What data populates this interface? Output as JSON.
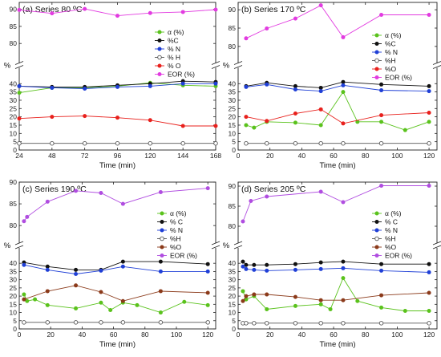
{
  "chart_data": [
    {
      "type": "line",
      "title": "(a) Series 80 ºC",
      "xlabel": "Time (min)",
      "ylabel": "%",
      "xlim": [
        24,
        168
      ],
      "xticks": [
        24,
        48,
        72,
        96,
        120,
        144,
        168
      ],
      "upper": {
        "ylim": [
          77,
          92
        ],
        "yticks": [
          80,
          85,
          90
        ]
      },
      "lower": {
        "ylim": [
          0,
          44
        ],
        "yticks": [
          0,
          5,
          10,
          15,
          20,
          25,
          30,
          35,
          40
        ]
      },
      "legend_position": "right",
      "series": [
        {
          "name": "α (%)",
          "color": "#5ac21c",
          "marker": "filled",
          "panel": "lower",
          "x": [
            24,
            48,
            72,
            96,
            120,
            144,
            168
          ],
          "y": [
            34.5,
            37.5,
            37.5,
            38.5,
            40.5,
            39,
            38.5
          ]
        },
        {
          "name": "%C",
          "color": "#111111",
          "marker": "filled",
          "panel": "lower",
          "x": [
            24,
            48,
            72,
            96,
            120,
            144,
            168
          ],
          "y": [
            38.5,
            38,
            38,
            39,
            40,
            41.5,
            41
          ]
        },
        {
          "name": "% N",
          "color": "#1f3fd6",
          "marker": "filled",
          "panel": "lower",
          "x": [
            24,
            48,
            72,
            96,
            120,
            144,
            168
          ],
          "y": [
            38.5,
            37.5,
            37,
            38,
            38.5,
            40,
            40
          ]
        },
        {
          "name": "% H",
          "color": "#555555",
          "marker": "open",
          "panel": "lower",
          "x": [
            24,
            48,
            72,
            96,
            120,
            144,
            168
          ],
          "y": [
            4,
            4,
            4,
            4,
            4,
            4,
            4
          ]
        },
        {
          "name": "% O",
          "color": "#e8201c",
          "marker": "filled",
          "panel": "lower",
          "x": [
            24,
            48,
            72,
            96,
            120,
            144,
            168
          ],
          "y": [
            19,
            20,
            20.5,
            19.5,
            18,
            14.5,
            14.5
          ]
        },
        {
          "name": "EOR (%)",
          "color": "#e23be0",
          "marker": "filled",
          "panel": "upper",
          "x": [
            24,
            48,
            72,
            96,
            120,
            144,
            168
          ],
          "y": [
            89.8,
            88.8,
            90.1,
            88.1,
            88.9,
            89.2,
            89.9
          ]
        }
      ]
    },
    {
      "type": "line",
      "title": "(b) Series 170 ºC",
      "xlabel": "Time (min)",
      "ylabel": "%",
      "xlim": [
        0,
        125
      ],
      "xticks": [
        0,
        20,
        40,
        60,
        80,
        100,
        120
      ],
      "upper": {
        "ylim": [
          78,
          92
        ],
        "yticks": [
          80,
          85,
          90
        ]
      },
      "lower": {
        "ylim": [
          0,
          44
        ],
        "yticks": [
          0,
          5,
          10,
          15,
          20,
          25,
          30,
          35,
          40
        ]
      },
      "legend_position": "right",
      "series": [
        {
          "name": "α (%)",
          "color": "#5ac21c",
          "marker": "filled",
          "panel": "lower",
          "x": [
            5,
            10,
            18,
            36,
            52,
            66,
            75,
            90,
            105,
            120
          ],
          "y": [
            15,
            13.5,
            17,
            16.5,
            15,
            35,
            17,
            17,
            12,
            17
          ]
        },
        {
          "name": "%C",
          "color": "#111111",
          "marker": "filled",
          "panel": "lower",
          "x": [
            5,
            18,
            36,
            52,
            66,
            90,
            120
          ],
          "y": [
            38.5,
            40.5,
            38.5,
            37.5,
            41,
            39.5,
            38.5
          ]
        },
        {
          "name": "% N",
          "color": "#1f3fd6",
          "marker": "filled",
          "panel": "lower",
          "x": [
            5,
            18,
            36,
            52,
            66,
            90,
            120
          ],
          "y": [
            38,
            39.5,
            36.5,
            35.5,
            39,
            36,
            35.5
          ]
        },
        {
          "name": "%H",
          "color": "#555555",
          "marker": "open",
          "panel": "lower",
          "x": [
            5,
            18,
            36,
            52,
            66,
            90,
            120
          ],
          "y": [
            4,
            4,
            4,
            4,
            4,
            4,
            4
          ]
        },
        {
          "name": "%O",
          "color": "#e8201c",
          "marker": "filled",
          "panel": "lower",
          "x": [
            5,
            18,
            36,
            52,
            66,
            90,
            120
          ],
          "y": [
            20,
            17.5,
            22,
            24.5,
            16,
            21,
            22.5
          ]
        },
        {
          "name": "EOR (%)",
          "color": "#e23be0",
          "marker": "filled",
          "panel": "upper",
          "x": [
            5,
            18,
            36,
            52,
            66,
            90,
            120
          ],
          "y": [
            82.2,
            84.9,
            87.6,
            91.2,
            82.5,
            88.6,
            88.6
          ]
        }
      ]
    },
    {
      "type": "line",
      "title": "(c) Series 190 ºC",
      "xlabel": "Time (min)",
      "ylabel": "%",
      "xlim": [
        0,
        125
      ],
      "xticks": [
        0,
        20,
        40,
        60,
        80,
        100,
        120
      ],
      "upper": {
        "ylim": [
          78,
          90
        ],
        "yticks": [
          80,
          85,
          90
        ]
      },
      "lower": {
        "ylim": [
          0,
          44
        ],
        "yticks": [
          0,
          5,
          10,
          15,
          20,
          25,
          30,
          35,
          40
        ]
      },
      "legend_position": "right",
      "series": [
        {
          "name": "α (%)",
          "color": "#5ac21c",
          "marker": "filled",
          "panel": "lower",
          "x": [
            3,
            5,
            10,
            18,
            36,
            52,
            58,
            66,
            75,
            90,
            105,
            120
          ],
          "y": [
            21,
            17,
            18,
            14.5,
            12.5,
            16,
            11.5,
            16,
            14.5,
            10,
            16.5,
            14.5
          ]
        },
        {
          "name": "% C",
          "color": "#111111",
          "marker": "filled",
          "panel": "lower",
          "x": [
            3,
            18,
            36,
            52,
            66,
            90,
            120
          ],
          "y": [
            40.5,
            38,
            36,
            36,
            41,
            41,
            39.5
          ]
        },
        {
          "name": "% N",
          "color": "#1f3fd6",
          "marker": "filled",
          "panel": "lower",
          "x": [
            3,
            18,
            36,
            52,
            66,
            90,
            120
          ],
          "y": [
            39,
            36,
            33.5,
            35.5,
            38,
            35,
            35
          ]
        },
        {
          "name": "%H",
          "color": "#555555",
          "marker": "open",
          "panel": "lower",
          "x": [
            3,
            18,
            36,
            52,
            66,
            90,
            120
          ],
          "y": [
            4,
            4,
            4,
            4,
            4,
            4,
            4
          ]
        },
        {
          "name": "%O",
          "color": "#8b3a1a",
          "marker": "filled",
          "panel": "lower",
          "x": [
            3,
            18,
            36,
            52,
            66,
            90,
            120
          ],
          "y": [
            18,
            23,
            26.5,
            22.5,
            17,
            23,
            22
          ]
        },
        {
          "name": "EOR (%)",
          "color": "#b04de0",
          "marker": "filled",
          "panel": "upper",
          "x": [
            3,
            5,
            18,
            36,
            52,
            66,
            90,
            120
          ],
          "y": [
            81,
            82,
            85.5,
            88,
            87.5,
            85,
            87.7,
            88.6
          ]
        }
      ]
    },
    {
      "type": "line",
      "title": "(d) Series 205 ºC",
      "xlabel": "Time (min)",
      "ylabel": "%",
      "xlim": [
        0,
        125
      ],
      "xticks": [
        0,
        20,
        40,
        60,
        80,
        100,
        120
      ],
      "upper": {
        "ylim": [
          78,
          91
        ],
        "yticks": [
          80,
          85,
          90
        ]
      },
      "lower": {
        "ylim": [
          0,
          44
        ],
        "yticks": [
          0,
          5,
          10,
          15,
          20,
          25,
          30,
          35,
          40
        ]
      },
      "legend_position": "right",
      "series": [
        {
          "name": "α (%)",
          "color": "#5ac21c",
          "marker": "filled",
          "panel": "lower",
          "x": [
            3,
            5,
            10,
            18,
            36,
            52,
            58,
            66,
            75,
            90,
            105,
            120
          ],
          "y": [
            23,
            18,
            20,
            12,
            14,
            15,
            12,
            31,
            17,
            13,
            11,
            11
          ]
        },
        {
          "name": "% C",
          "color": "#111111",
          "marker": "filled",
          "panel": "lower",
          "x": [
            3,
            5,
            10,
            18,
            36,
            52,
            66,
            90,
            120
          ],
          "y": [
            41,
            39,
            39,
            39,
            39.5,
            40.5,
            41,
            39.5,
            39.5
          ]
        },
        {
          "name": "% N",
          "color": "#1f3fd6",
          "marker": "filled",
          "panel": "lower",
          "x": [
            3,
            5,
            10,
            18,
            36,
            52,
            66,
            90,
            120
          ],
          "y": [
            38,
            36.5,
            36,
            35.5,
            36,
            36.5,
            37,
            35.5,
            34.5
          ]
        },
        {
          "name": "%H",
          "color": "#555555",
          "marker": "open",
          "panel": "lower",
          "x": [
            3,
            5,
            10,
            18,
            36,
            52,
            66,
            90,
            120
          ],
          "y": [
            3.5,
            3.5,
            3.5,
            3.5,
            3.5,
            3.5,
            3.5,
            3.5,
            3.5
          ]
        },
        {
          "name": "%O",
          "color": "#8b3a1a",
          "marker": "filled",
          "panel": "lower",
          "x": [
            3,
            5,
            10,
            18,
            36,
            52,
            66,
            90,
            120
          ],
          "y": [
            17,
            20,
            21,
            21,
            19.5,
            17.5,
            17.5,
            20.5,
            22
          ]
        },
        {
          "name": "EOR (%)",
          "color": "#b04de0",
          "marker": "filled",
          "panel": "upper",
          "x": [
            3,
            8,
            18,
            52,
            66,
            90,
            120
          ],
          "y": [
            81.2,
            86.3,
            87.4,
            88.6,
            86,
            90.1,
            90.1
          ]
        }
      ]
    }
  ]
}
